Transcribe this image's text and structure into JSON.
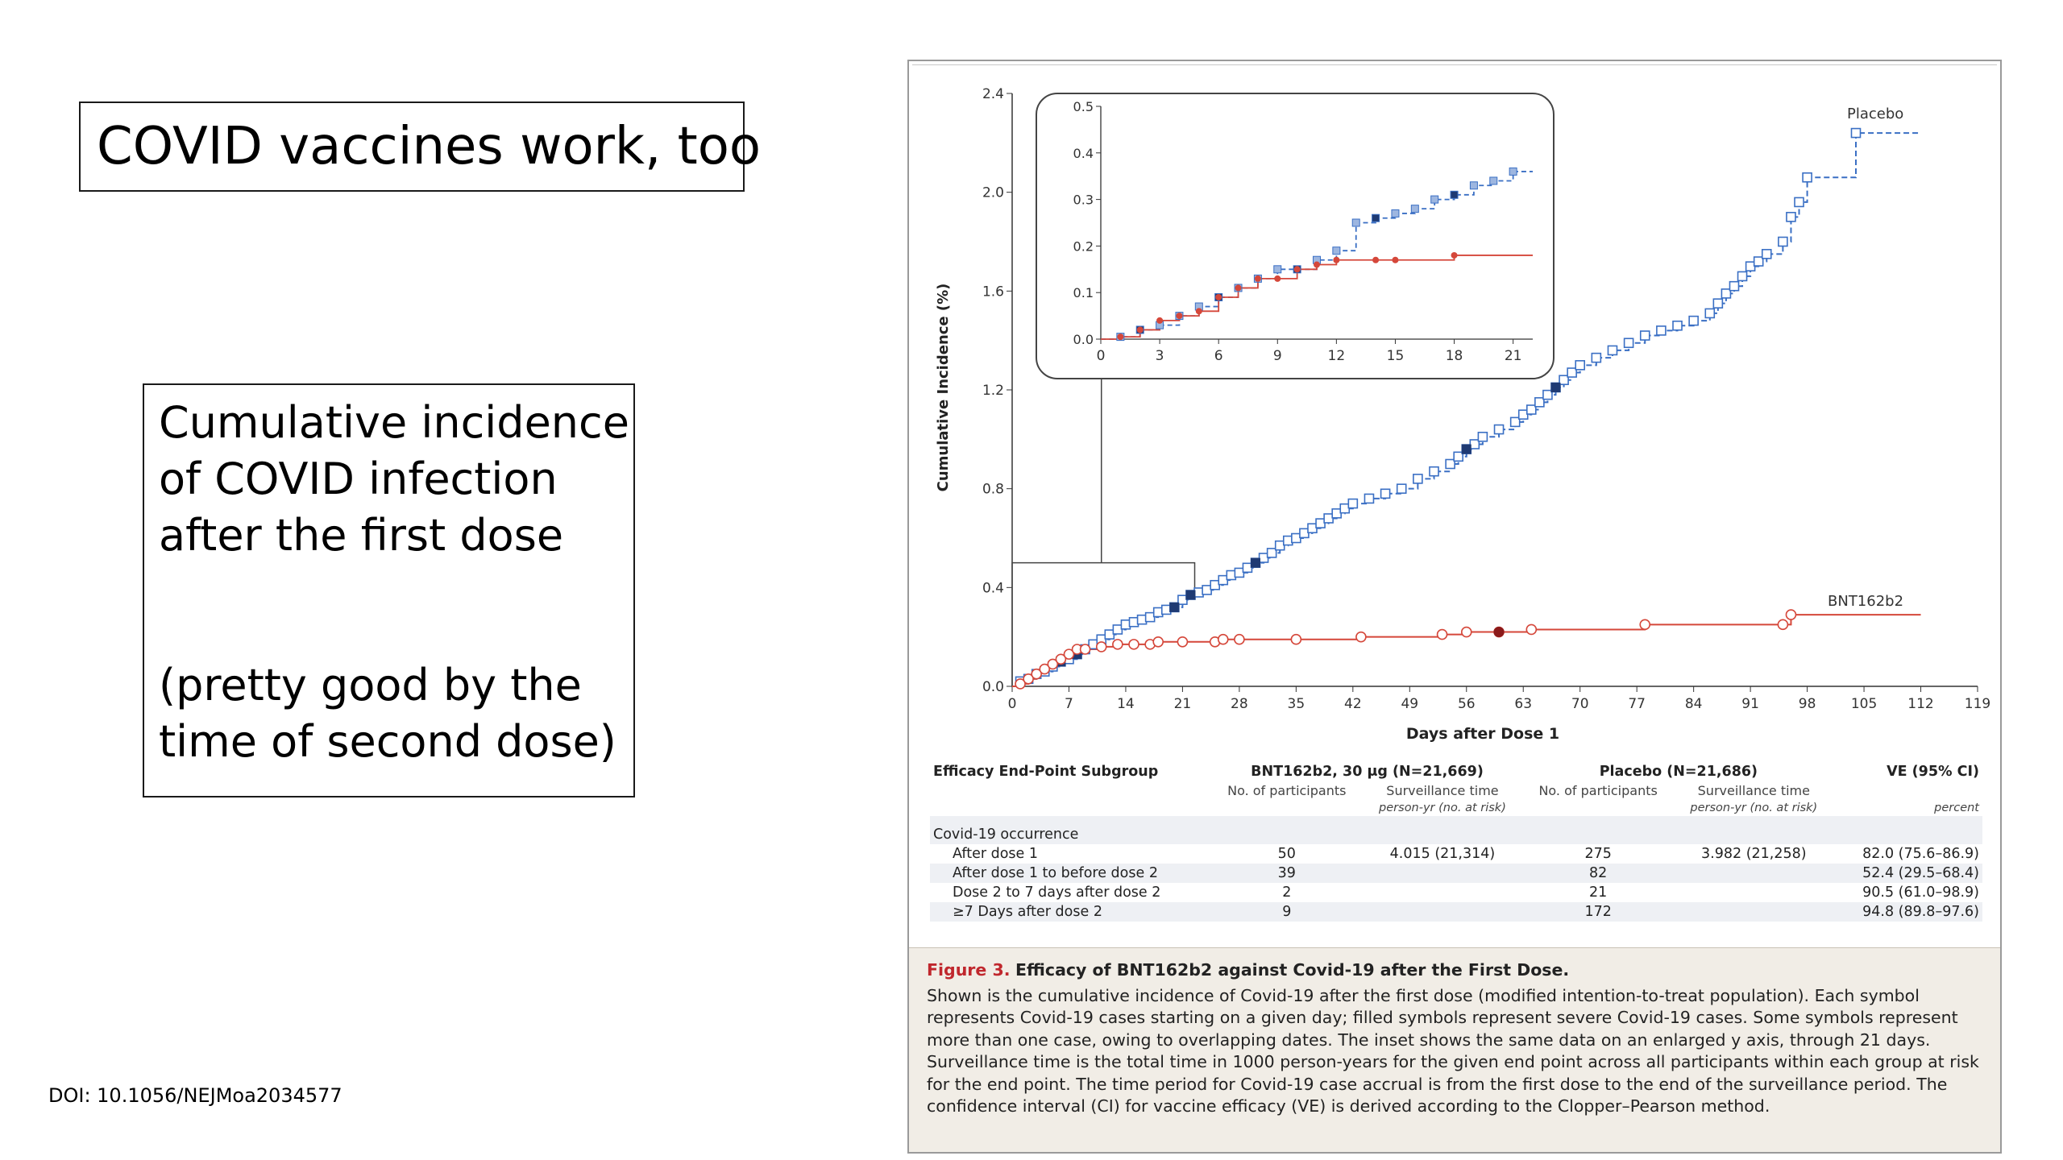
{
  "slide": {
    "title": "COVID vaccines work, too",
    "description": "Cumulative incidence\nof COVID infection\nafter the first dose",
    "note": "(pretty good by the\ntime of second dose)",
    "doi": "DOI: 10.1056/NEJMoa2034577"
  },
  "chart_data": {
    "type": "line",
    "ylabel": "Cumulative Incidence (%)",
    "xlabel": "Days after Dose 1",
    "xlim": [
      0,
      119
    ],
    "ylim": [
      0,
      2.4
    ],
    "xticks": [
      0,
      7,
      14,
      21,
      28,
      35,
      42,
      49,
      56,
      63,
      70,
      77,
      84,
      91,
      98,
      105,
      112,
      119
    ],
    "yticks": [
      "0.0",
      "0.4",
      "0.8",
      "1.2",
      "1.6",
      "2.0",
      "2.4"
    ],
    "colors": {
      "placebo": "#3a6fc4",
      "vaccine": "#d5473a",
      "severe_placebo": "#1f3a73",
      "severe_vaccine": "#8b1a1a"
    },
    "series": [
      {
        "name": "Placebo",
        "points": [
          [
            0,
            0
          ],
          [
            1,
            0.02
          ],
          [
            2,
            0.03
          ],
          [
            3,
            0.05
          ],
          [
            4,
            0.06
          ],
          [
            5,
            0.08
          ],
          [
            6,
            0.1
          ],
          [
            7,
            0.11
          ],
          [
            8,
            0.13
          ],
          [
            9,
            0.15
          ],
          [
            10,
            0.17
          ],
          [
            11,
            0.19
          ],
          [
            12,
            0.21
          ],
          [
            13,
            0.23
          ],
          [
            14,
            0.25
          ],
          [
            15,
            0.26
          ],
          [
            16,
            0.27
          ],
          [
            17,
            0.28
          ],
          [
            18,
            0.3
          ],
          [
            19,
            0.31
          ],
          [
            20,
            0.32
          ],
          [
            21,
            0.35
          ],
          [
            22,
            0.37
          ],
          [
            23,
            0.38
          ],
          [
            24,
            0.39
          ],
          [
            25,
            0.41
          ],
          [
            26,
            0.43
          ],
          [
            27,
            0.45
          ],
          [
            28,
            0.46
          ],
          [
            29,
            0.48
          ],
          [
            30,
            0.5
          ],
          [
            31,
            0.52
          ],
          [
            32,
            0.54
          ],
          [
            33,
            0.57
          ],
          [
            34,
            0.59
          ],
          [
            35,
            0.6
          ],
          [
            36,
            0.62
          ],
          [
            37,
            0.64
          ],
          [
            38,
            0.66
          ],
          [
            39,
            0.68
          ],
          [
            40,
            0.7
          ],
          [
            41,
            0.72
          ],
          [
            42,
            0.74
          ],
          [
            44,
            0.76
          ],
          [
            46,
            0.78
          ],
          [
            48,
            0.8
          ],
          [
            50,
            0.84
          ],
          [
            52,
            0.87
          ],
          [
            54,
            0.9
          ],
          [
            55,
            0.93
          ],
          [
            56,
            0.96
          ],
          [
            57,
            0.98
          ],
          [
            58,
            1.01
          ],
          [
            60,
            1.04
          ],
          [
            62,
            1.07
          ],
          [
            63,
            1.1
          ],
          [
            64,
            1.12
          ],
          [
            65,
            1.15
          ],
          [
            66,
            1.18
          ],
          [
            67,
            1.21
          ],
          [
            68,
            1.24
          ],
          [
            69,
            1.27
          ],
          [
            70,
            1.3
          ],
          [
            72,
            1.33
          ],
          [
            74,
            1.36
          ],
          [
            76,
            1.39
          ],
          [
            78,
            1.42
          ],
          [
            80,
            1.44
          ],
          [
            82,
            1.46
          ],
          [
            84,
            1.48
          ],
          [
            86,
            1.51
          ],
          [
            87,
            1.55
          ],
          [
            88,
            1.59
          ],
          [
            89,
            1.62
          ],
          [
            90,
            1.66
          ],
          [
            91,
            1.7
          ],
          [
            92,
            1.72
          ],
          [
            93,
            1.75
          ],
          [
            95,
            1.8
          ],
          [
            96,
            1.9
          ],
          [
            97,
            1.96
          ],
          [
            98,
            2.06
          ],
          [
            104,
            2.24
          ],
          [
            112,
            2.24
          ]
        ],
        "severe_x": [
          6,
          8,
          20,
          22,
          30,
          56,
          67
        ]
      },
      {
        "name": "BNT162b2",
        "points": [
          [
            0,
            0
          ],
          [
            1,
            0.01
          ],
          [
            2,
            0.03
          ],
          [
            3,
            0.05
          ],
          [
            4,
            0.07
          ],
          [
            5,
            0.09
          ],
          [
            6,
            0.11
          ],
          [
            7,
            0.13
          ],
          [
            8,
            0.15
          ],
          [
            9,
            0.15
          ],
          [
            11,
            0.16
          ],
          [
            13,
            0.17
          ],
          [
            15,
            0.17
          ],
          [
            17,
            0.17
          ],
          [
            18,
            0.18
          ],
          [
            21,
            0.18
          ],
          [
            25,
            0.18
          ],
          [
            26,
            0.19
          ],
          [
            28,
            0.19
          ],
          [
            35,
            0.19
          ],
          [
            43,
            0.2
          ],
          [
            53,
            0.21
          ],
          [
            56,
            0.22
          ],
          [
            60,
            0.22
          ],
          [
            64,
            0.23
          ],
          [
            78,
            0.25
          ],
          [
            95,
            0.25
          ],
          [
            96,
            0.29
          ],
          [
            112,
            0.29
          ]
        ],
        "severe_x": [
          60
        ]
      }
    ],
    "inset": {
      "xticks": [
        0,
        3,
        6,
        9,
        12,
        15,
        18,
        21
      ],
      "yticks": [
        "0.0",
        "0.1",
        "0.2",
        "0.3",
        "0.4",
        "0.5"
      ],
      "xlim": [
        0,
        22
      ],
      "ylim": [
        0,
        0.5
      ],
      "placebo": [
        [
          0,
          0
        ],
        [
          1,
          0.005
        ],
        [
          2,
          0.02
        ],
        [
          3,
          0.03
        ],
        [
          4,
          0.05
        ],
        [
          5,
          0.07
        ],
        [
          6,
          0.09
        ],
        [
          7,
          0.11
        ],
        [
          8,
          0.13
        ],
        [
          9,
          0.15
        ],
        [
          10,
          0.15
        ],
        [
          11,
          0.17
        ],
        [
          12,
          0.19
        ],
        [
          13,
          0.25
        ],
        [
          14,
          0.26
        ],
        [
          15,
          0.27
        ],
        [
          16,
          0.28
        ],
        [
          17,
          0.3
        ],
        [
          18,
          0.31
        ],
        [
          19,
          0.33
        ],
        [
          20,
          0.34
        ],
        [
          21,
          0.36
        ],
        [
          22,
          0.36
        ]
      ],
      "vaccine": [
        [
          0,
          0
        ],
        [
          1,
          0.005
        ],
        [
          2,
          0.02
        ],
        [
          3,
          0.04
        ],
        [
          4,
          0.05
        ],
        [
          5,
          0.06
        ],
        [
          6,
          0.09
        ],
        [
          7,
          0.11
        ],
        [
          8,
          0.13
        ],
        [
          9,
          0.13
        ],
        [
          10,
          0.15
        ],
        [
          11,
          0.16
        ],
        [
          12,
          0.17
        ],
        [
          14,
          0.17
        ],
        [
          15,
          0.17
        ],
        [
          18,
          0.18
        ],
        [
          22,
          0.18
        ]
      ]
    }
  },
  "figure": {
    "placebo_label": "Placebo",
    "vaccine_label": "BNT162b2",
    "table": {
      "h_subgroup": "Efficacy End-Point Subgroup",
      "h_vaccine": "BNT162b2, 30 μg (N=21,669)",
      "h_placebo": "Placebo (N=21,686)",
      "h_ve": "VE (95% CI)",
      "h_participants": "No. of participants",
      "h_surveillance": "Surveillance time",
      "h_person_yr": "person-yr (no. at risk)",
      "h_percent": "percent",
      "group": "Covid-19 occurrence",
      "rows": [
        {
          "label": "After dose 1",
          "v_n": "50",
          "v_time": "4.015 (21,314)",
          "p_n": "275",
          "p_time": "3.982 (21,258)",
          "ve": "82.0 (75.6–86.9)"
        },
        {
          "label": "After dose 1 to before dose 2",
          "v_n": "39",
          "v_time": "",
          "p_n": "82",
          "p_time": "",
          "ve": "52.4 (29.5–68.4)"
        },
        {
          "label": "Dose 2 to 7 days after dose 2",
          "v_n": "2",
          "v_time": "",
          "p_n": "21",
          "p_time": "",
          "ve": "90.5 (61.0–98.9)"
        },
        {
          "label": "≥7 Days after dose 2",
          "v_n": "9",
          "v_time": "",
          "p_n": "172",
          "p_time": "",
          "ve": "94.8 (89.8–97.6)"
        }
      ]
    },
    "caption": {
      "label": "Figure 3.",
      "title": "Efficacy of BNT162b2 against Covid-19 after the First Dose.",
      "body": "Shown is the cumulative incidence of Covid-19 after the first dose (modified intention-to-treat population). Each symbol represents Covid-19 cases starting on a given day; filled symbols represent severe Covid-19 cases. Some symbols represent more than one case, owing to overlapping dates. The inset shows the same data on an enlarged y axis, through 21 days. Surveillance time is the total time in 1000 person-years for the given end point across all participants within each group at risk for the end point. The time period for Covid-19 case accrual is from the first dose to the end of the surveillance period. The confidence interval (CI) for vaccine efficacy (VE) is derived according to the Clopper–Pearson method."
    }
  }
}
